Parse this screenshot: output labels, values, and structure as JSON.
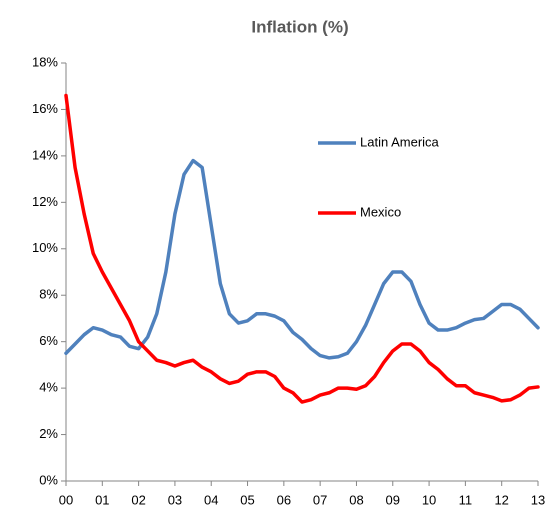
{
  "chart_data": {
    "type": "line",
    "title": "Inflation (%)",
    "x": [
      0,
      0.25,
      0.5,
      0.75,
      1,
      1.25,
      1.5,
      1.75,
      2,
      2.25,
      2.5,
      2.75,
      3,
      3.25,
      3.5,
      3.75,
      4,
      4.25,
      4.5,
      4.75,
      5,
      5.25,
      5.5,
      5.75,
      6,
      6.25,
      6.5,
      6.75,
      7,
      7.25,
      7.5,
      7.75,
      8,
      8.25,
      8.5,
      8.75,
      9,
      9.25,
      9.5,
      9.75,
      10,
      10.25,
      10.5,
      10.75,
      11,
      11.25,
      11.5,
      11.75,
      12,
      12.25,
      12.5,
      12.75,
      13
    ],
    "series": [
      {
        "name": "Latin America",
        "color": "#4f81bd",
        "values": [
          5.5,
          5.9,
          6.3,
          6.6,
          6.5,
          6.3,
          6.2,
          5.8,
          5.7,
          6.2,
          7.2,
          9.0,
          11.5,
          13.2,
          13.8,
          13.5,
          11.0,
          8.5,
          7.2,
          6.8,
          6.9,
          7.2,
          7.2,
          7.1,
          6.9,
          6.4,
          6.1,
          5.7,
          5.4,
          5.3,
          5.35,
          5.5,
          6.0,
          6.7,
          7.6,
          8.5,
          9.0,
          9.0,
          8.6,
          7.6,
          6.8,
          6.5,
          6.5,
          6.6,
          6.8,
          6.95,
          7.0,
          7.3,
          7.6,
          7.6,
          7.4,
          7.0,
          6.6
        ]
      },
      {
        "name": "Mexico",
        "color": "#ff0000",
        "values": [
          16.6,
          13.5,
          11.5,
          9.8,
          9.0,
          8.3,
          7.6,
          6.9,
          6.0,
          5.6,
          5.2,
          5.1,
          4.95,
          5.1,
          5.2,
          4.9,
          4.7,
          4.4,
          4.2,
          4.3,
          4.6,
          4.7,
          4.7,
          4.5,
          4.0,
          3.8,
          3.4,
          3.5,
          3.7,
          3.8,
          4.0,
          4.0,
          3.95,
          4.1,
          4.5,
          5.1,
          5.6,
          5.9,
          5.9,
          5.6,
          5.1,
          4.8,
          4.4,
          4.1,
          4.1,
          3.8,
          3.7,
          3.6,
          3.45,
          3.5,
          3.7,
          4.0,
          4.05
        ]
      }
    ],
    "xlim": [
      0,
      13
    ],
    "xticks": [
      {
        "value": 0,
        "label": "00"
      },
      {
        "value": 1,
        "label": "01"
      },
      {
        "value": 2,
        "label": "02"
      },
      {
        "value": 3,
        "label": "03"
      },
      {
        "value": 4,
        "label": "04"
      },
      {
        "value": 5,
        "label": "05"
      },
      {
        "value": 6,
        "label": "06"
      },
      {
        "value": 7,
        "label": "07"
      },
      {
        "value": 8,
        "label": "08"
      },
      {
        "value": 9,
        "label": "09"
      },
      {
        "value": 10,
        "label": "10"
      },
      {
        "value": 11,
        "label": "11"
      },
      {
        "value": 12,
        "label": "12"
      },
      {
        "value": 13,
        "label": "13"
      }
    ],
    "ylim": [
      0,
      18
    ],
    "yticks": [
      {
        "value": 0,
        "label": "0%"
      },
      {
        "value": 2,
        "label": "2%"
      },
      {
        "value": 4,
        "label": "4%"
      },
      {
        "value": 6,
        "label": "6%"
      },
      {
        "value": 8,
        "label": "8%"
      },
      {
        "value": 10,
        "label": "10%"
      },
      {
        "value": 12,
        "label": "12%"
      },
      {
        "value": 14,
        "label": "14%"
      },
      {
        "value": 16,
        "label": "16%"
      },
      {
        "value": 18,
        "label": "18%"
      }
    ],
    "grid": false
  }
}
